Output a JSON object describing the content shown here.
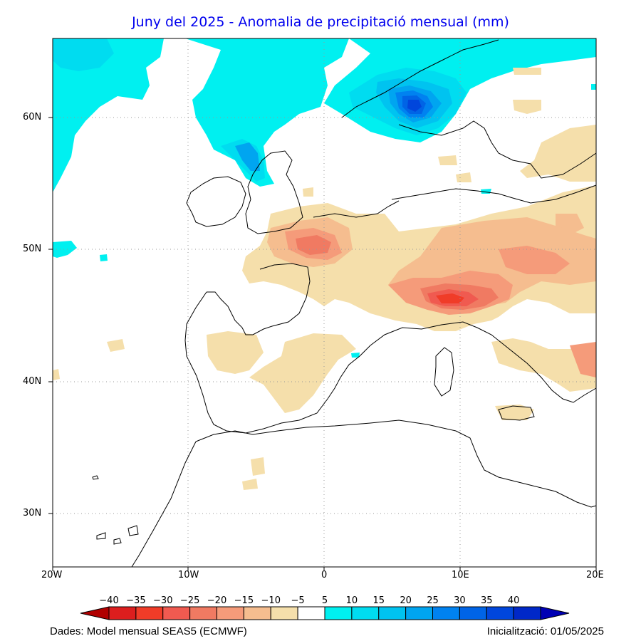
{
  "title": "Juny del 2025 - Anomalia de precipitació mensual (mm)",
  "map": {
    "region": "Western Europe / Mediterranean",
    "lon_range": [
      -20,
      20
    ],
    "lat_range": [
      26,
      66
    ],
    "lat_labels": [
      "60N",
      "50N",
      "40N",
      "30N"
    ],
    "lon_labels": [
      "20W",
      "10W",
      "0",
      "10E",
      "20E"
    ],
    "grid": "dotted"
  },
  "colorbar": {
    "ticks": [
      "-40",
      "-35",
      "-30",
      "-25",
      "-20",
      "-15",
      "-10",
      "-5",
      "5",
      "10",
      "15",
      "20",
      "25",
      "30",
      "35",
      "40"
    ],
    "colors": [
      "#b00000",
      "#dc1e1e",
      "#f03c28",
      "#f05a50",
      "#f07a62",
      "#f59b7a",
      "#f5bd8f",
      "#f5dfab",
      "#ffffff",
      "#00f0f0",
      "#00dcf0",
      "#00c3f0",
      "#00a5f0",
      "#0082f0",
      "#0064e6",
      "#0046dc",
      "#0028c8",
      "#0000b4"
    ]
  },
  "footer": {
    "source": "Dades: Model mensual SEAS5 (ECMWF)",
    "init": "Inicialització: 01/05/2025"
  }
}
